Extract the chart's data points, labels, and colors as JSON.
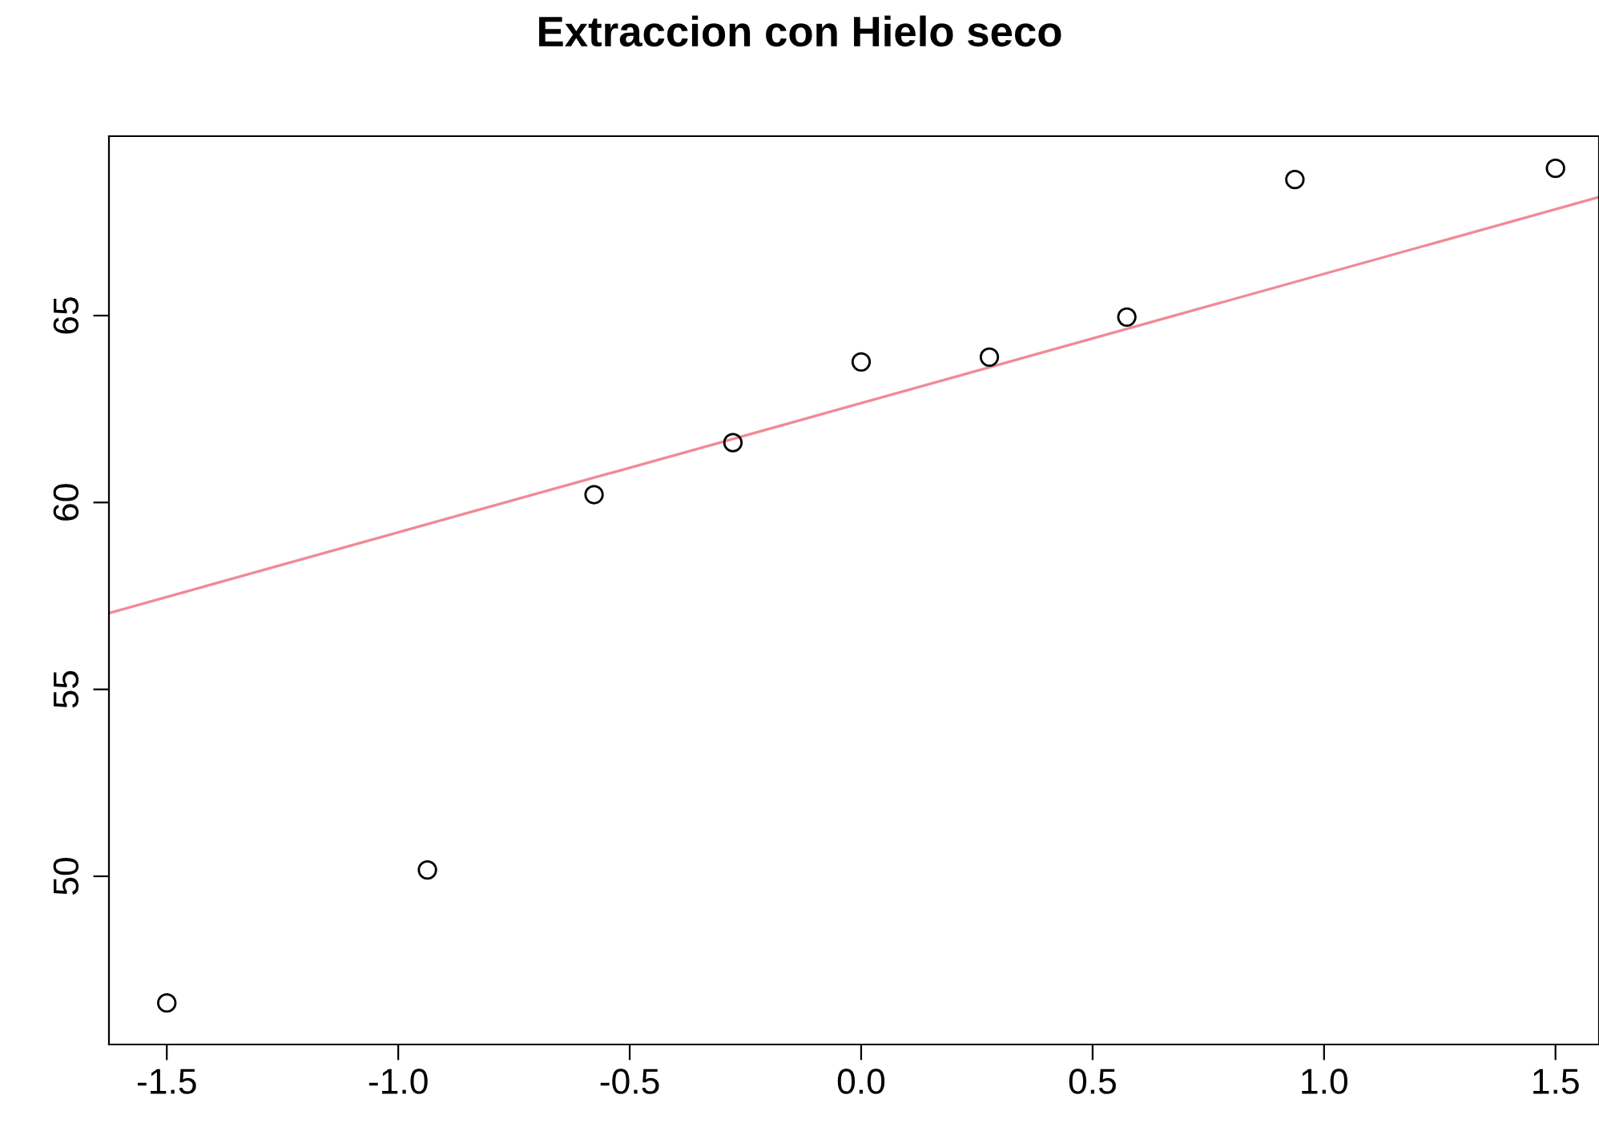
{
  "chart_data": {
    "type": "scatter",
    "title": "Extraccion con Hielo seco",
    "x": [
      -1.5,
      -0.937,
      -0.577,
      -0.277,
      0,
      0.277,
      0.574,
      0.937,
      1.5
    ],
    "series": [
      {
        "color": "#000000",
        "marker": "circle",
        "values": [
          46.61,
          50.17,
          60.21,
          61.6,
          63.76,
          63.89,
          64.96,
          68.64,
          68.94
        ]
      },
      {
        "type": "line",
        "color": "#f08a96",
        "x": [
          -1.625,
          1.594
        ],
        "values": [
          57.04,
          68.17
        ]
      }
    ],
    "xlim": [
      -1.625,
      1.594
    ],
    "ylim": [
      45.5,
      69.8
    ],
    "xticks": [
      {
        "value": -1.5,
        "label": "-1.5"
      },
      {
        "value": -1.0,
        "label": "-1.0"
      },
      {
        "value": -0.5,
        "label": "-0.5"
      },
      {
        "value": 0.0,
        "label": "0.0"
      },
      {
        "value": 0.5,
        "label": "0.5"
      },
      {
        "value": 1.0,
        "label": "1.0"
      },
      {
        "value": 1.5,
        "label": "1.5"
      }
    ],
    "yticks": [
      50,
      55,
      60,
      65
    ],
    "grid": false
  }
}
